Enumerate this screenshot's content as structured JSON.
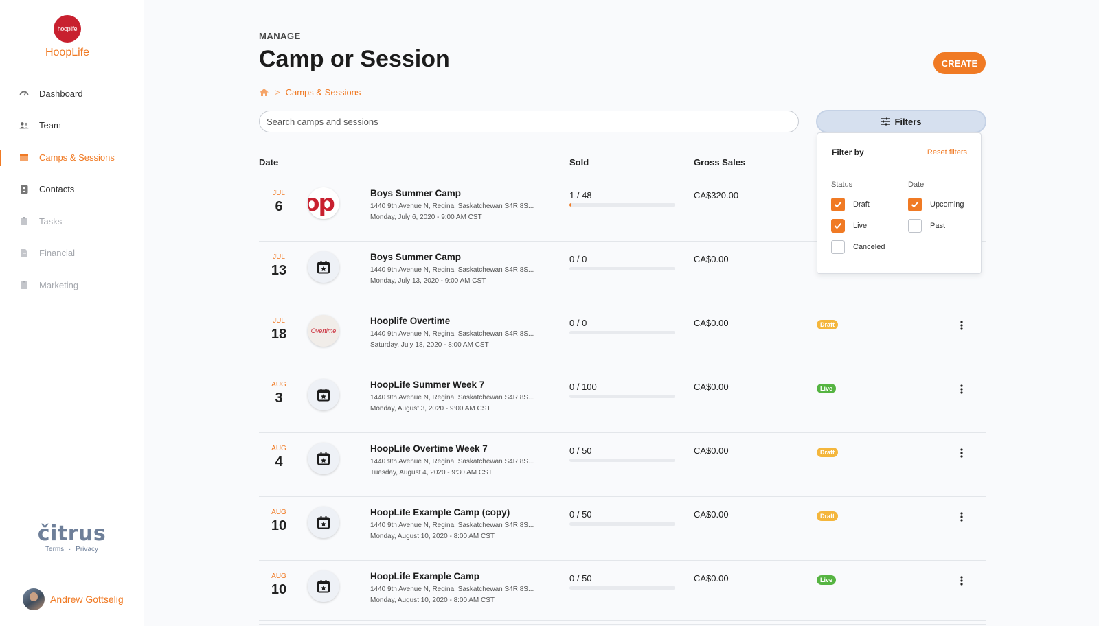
{
  "sidebar": {
    "logo_text": "hooplife",
    "org_name": "HoopLife",
    "items": [
      {
        "label": "Dashboard",
        "icon": "speedometer-icon"
      },
      {
        "label": "Team",
        "icon": "people-icon"
      },
      {
        "label": "Camps & Sessions",
        "icon": "calendar-icon",
        "active": true
      },
      {
        "label": "Contacts",
        "icon": "contacts-icon"
      },
      {
        "label": "Tasks",
        "icon": "clipboard-icon",
        "disabled": true
      },
      {
        "label": "Financial",
        "icon": "document-icon",
        "disabled": true
      },
      {
        "label": "Marketing",
        "icon": "clipboard-icon",
        "disabled": true
      }
    ],
    "brand": "čitrus",
    "terms": "Terms",
    "link_sep": "·",
    "privacy": "Privacy",
    "user_name": "Andrew Gottselig"
  },
  "header": {
    "eyebrow": "MANAGE",
    "title": "Camp or Session",
    "create_label": "CREATE",
    "breadcrumb_sep": ">",
    "breadcrumb_current": "Camps & Sessions"
  },
  "search": {
    "placeholder": "Search camps and sessions",
    "value": ""
  },
  "filters": {
    "button_label": "Filters",
    "panel_title": "Filter by",
    "reset_label": "Reset filters",
    "status_heading": "Status",
    "date_heading": "Date",
    "status_options": [
      {
        "label": "Draft",
        "checked": true
      },
      {
        "label": "Live",
        "checked": true
      },
      {
        "label": "Canceled",
        "checked": false
      }
    ],
    "date_options": [
      {
        "label": "Upcoming",
        "checked": true
      },
      {
        "label": "Past",
        "checked": false
      }
    ]
  },
  "table": {
    "columns": [
      "Date",
      "Sold",
      "Gross Sales"
    ],
    "rows": [
      {
        "month": "JUL",
        "day": "6",
        "thumb": "hooplife-logo",
        "name": "Boys Summer Camp",
        "address": "1440 9th Avenue N, Regina, Saskatchewan S4R 8S...",
        "when": "Monday, July 6, 2020 - 9:00 AM CST",
        "sold": "1 / 48",
        "progress": 0.02,
        "gross": "CA$320.00",
        "status": ""
      },
      {
        "month": "JUL",
        "day": "13",
        "thumb": "calendar-star-icon",
        "name": "Boys Summer Camp",
        "address": "1440 9th Avenue N, Regina, Saskatchewan S4R 8S...",
        "when": "Monday, July 13, 2020 - 9:00 AM CST",
        "sold": "0 / 0",
        "progress": 0,
        "gross": "CA$0.00",
        "status": ""
      },
      {
        "month": "JUL",
        "day": "18",
        "thumb": "overtime-logo",
        "name": "Hooplife Overtime",
        "address": "1440 9th Avenue N, Regina, Saskatchewan S4R 8S...",
        "when": "Saturday, July 18, 2020 - 8:00 AM CST",
        "sold": "0 / 0",
        "progress": 0,
        "gross": "CA$0.00",
        "status": "Draft"
      },
      {
        "month": "AUG",
        "day": "3",
        "thumb": "calendar-star-icon",
        "name": "HoopLife Summer Week 7",
        "address": "1440 9th Avenue N, Regina, Saskatchewan S4R 8S...",
        "when": "Monday, August 3, 2020 - 9:00 AM CST",
        "sold": "0 / 100",
        "progress": 0,
        "gross": "CA$0.00",
        "status": "Live"
      },
      {
        "month": "AUG",
        "day": "4",
        "thumb": "calendar-star-icon",
        "name": "HoopLife Overtime Week 7",
        "address": "1440 9th Avenue N, Regina, Saskatchewan S4R 8S...",
        "when": "Tuesday, August 4, 2020 - 9:30 AM CST",
        "sold": "0 / 50",
        "progress": 0,
        "gross": "CA$0.00",
        "status": "Draft"
      },
      {
        "month": "AUG",
        "day": "10",
        "thumb": "calendar-star-icon",
        "name": "HoopLife Example Camp (copy)",
        "address": "1440 9th Avenue N, Regina, Saskatchewan S4R 8S...",
        "when": "Monday, August 10, 2020 - 8:00 AM CST",
        "sold": "0 / 50",
        "progress": 0,
        "gross": "CA$0.00",
        "status": "Draft"
      },
      {
        "month": "AUG",
        "day": "10",
        "thumb": "calendar-star-icon",
        "name": "HoopLife Example Camp",
        "address": "1440 9th Avenue N, Regina, Saskatchewan S4R 8S...",
        "when": "Monday, August 10, 2020 - 8:00 AM CST",
        "sold": "0 / 50",
        "progress": 0,
        "gross": "CA$0.00",
        "status": "Live"
      }
    ]
  },
  "colors": {
    "accent": "#f07a24",
    "draft": "#f4b63c",
    "live": "#56b442",
    "brand_red": "#c8202f"
  }
}
